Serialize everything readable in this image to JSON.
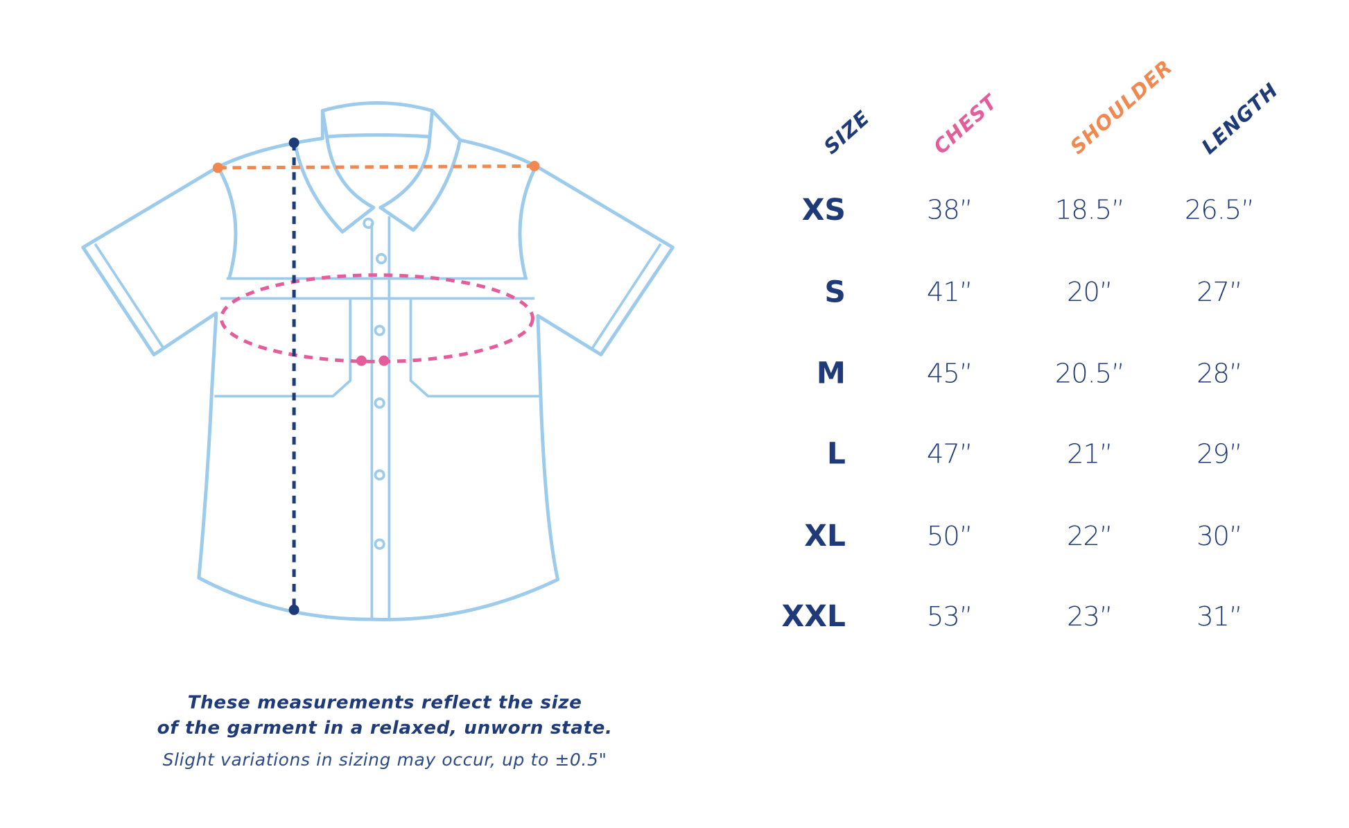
{
  "colors": {
    "navy": "#1e3a78",
    "chest": "#e45c9a",
    "shoulder": "#f08850",
    "shirt_outline": "#9dcbec"
  },
  "table": {
    "headers": {
      "size": "SIZE",
      "chest": "CHEST",
      "shoulder": "SHOULDER",
      "length": "LENGTH"
    },
    "rows": [
      {
        "size": "XS",
        "chest": "38”",
        "shoulder": "18.5”",
        "length": "26.5”"
      },
      {
        "size": "S",
        "chest": "41”",
        "shoulder": "20”",
        "length": "27”"
      },
      {
        "size": "M",
        "chest": "45”",
        "shoulder": "20.5”",
        "length": "28”"
      },
      {
        "size": "L",
        "chest": "47”",
        "shoulder": "21”",
        "length": "29”"
      },
      {
        "size": "XL",
        "chest": "50”",
        "shoulder": "22”",
        "length": "30”"
      },
      {
        "size": "XXL",
        "chest": "53”",
        "shoulder": "23”",
        "length": "31”"
      }
    ]
  },
  "caption": {
    "line1": "These measurements reflect the size",
    "line2": "of the garment in a relaxed, unworn state.",
    "note": "Slight variations in sizing may occur, up to ±0.5\""
  }
}
